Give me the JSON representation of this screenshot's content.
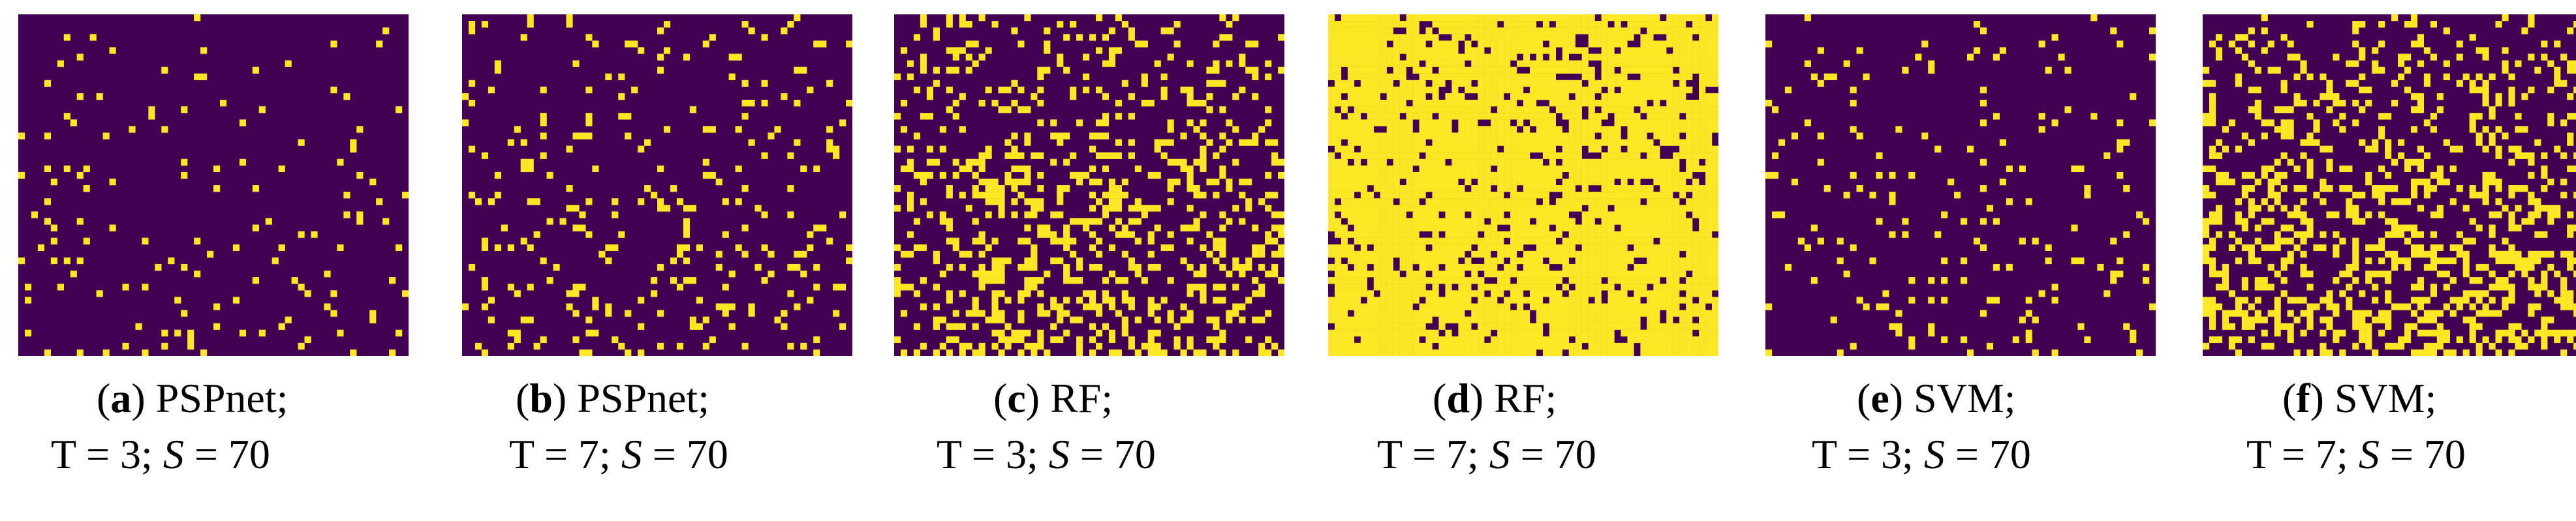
{
  "colors": {
    "background_class": "#440154",
    "foreground_class": "#FDE725"
  },
  "panels": [
    {
      "letter": "a",
      "method": "PSPnet",
      "t_text": "T = 3;",
      "s_symbol": "S",
      "s_value": "= 70",
      "coverage": 0.04
    },
    {
      "letter": "b",
      "method": "PSPnet",
      "t_text": "T = 7;",
      "s_symbol": "S",
      "s_value": "= 70",
      "coverage": 0.09
    },
    {
      "letter": "c",
      "method": "RF",
      "t_text": "T = 3;",
      "s_symbol": "S",
      "s_value": "= 70",
      "coverage": 0.24
    },
    {
      "letter": "d",
      "method": "RF",
      "t_text": "T = 7;",
      "s_symbol": "S",
      "s_value": "= 70",
      "coverage": 0.88
    },
    {
      "letter": "e",
      "method": "SVM",
      "t_text": "T = 3;",
      "s_symbol": "S",
      "s_value": "= 70",
      "coverage": 0.06
    },
    {
      "letter": "f",
      "method": "SVM",
      "t_text": "T = 7;",
      "s_symbol": "S",
      "s_value": "= 70",
      "coverage": 0.28
    }
  ]
}
